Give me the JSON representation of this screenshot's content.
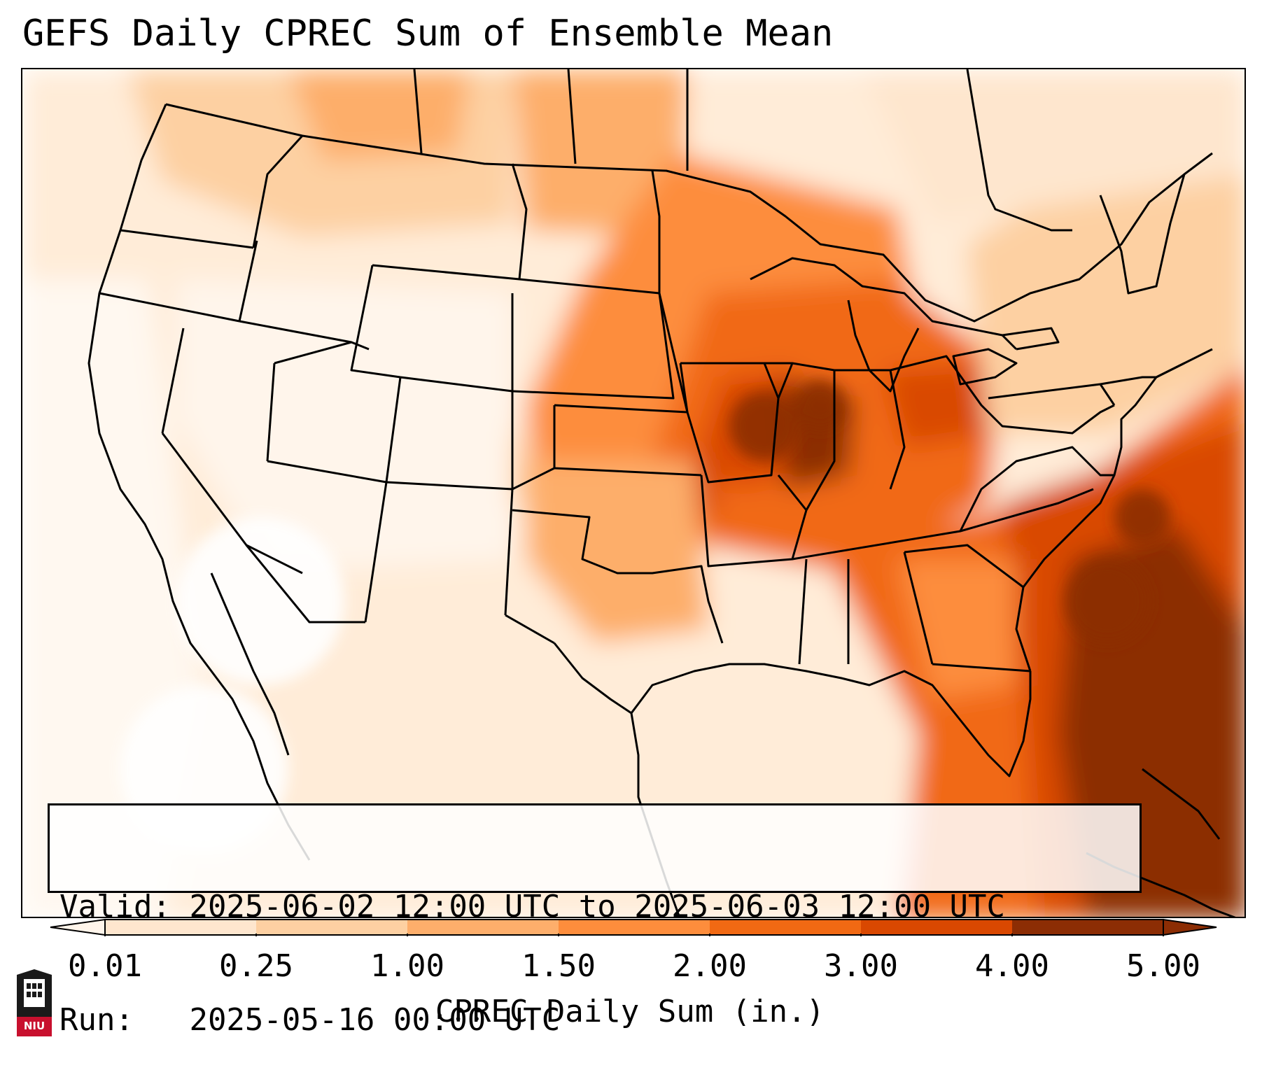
{
  "title": "GEFS Daily CPREC Sum of Ensemble Mean",
  "info": {
    "valid_label": "Valid:",
    "valid_value": "2025-06-02 12:00 UTC to 2025-06-03 12:00 UTC",
    "run_label": "Run:",
    "run_value": "2025-05-16 00:00 UTC"
  },
  "colorbar": {
    "label": "CPREC Daily Sum (in.)",
    "ticks": [
      "0.01",
      "0.25",
      "1.00",
      "1.50",
      "2.00",
      "3.00",
      "4.00",
      "5.00"
    ],
    "colors": [
      "#fff5eb",
      "#fee6ce",
      "#fdd0a2",
      "#fdae6b",
      "#fd8d3c",
      "#f16913",
      "#d94801",
      "#8c2d04"
    ],
    "extend": "both"
  },
  "logo": {
    "text": "NIU",
    "color": "#c8102e"
  }
}
